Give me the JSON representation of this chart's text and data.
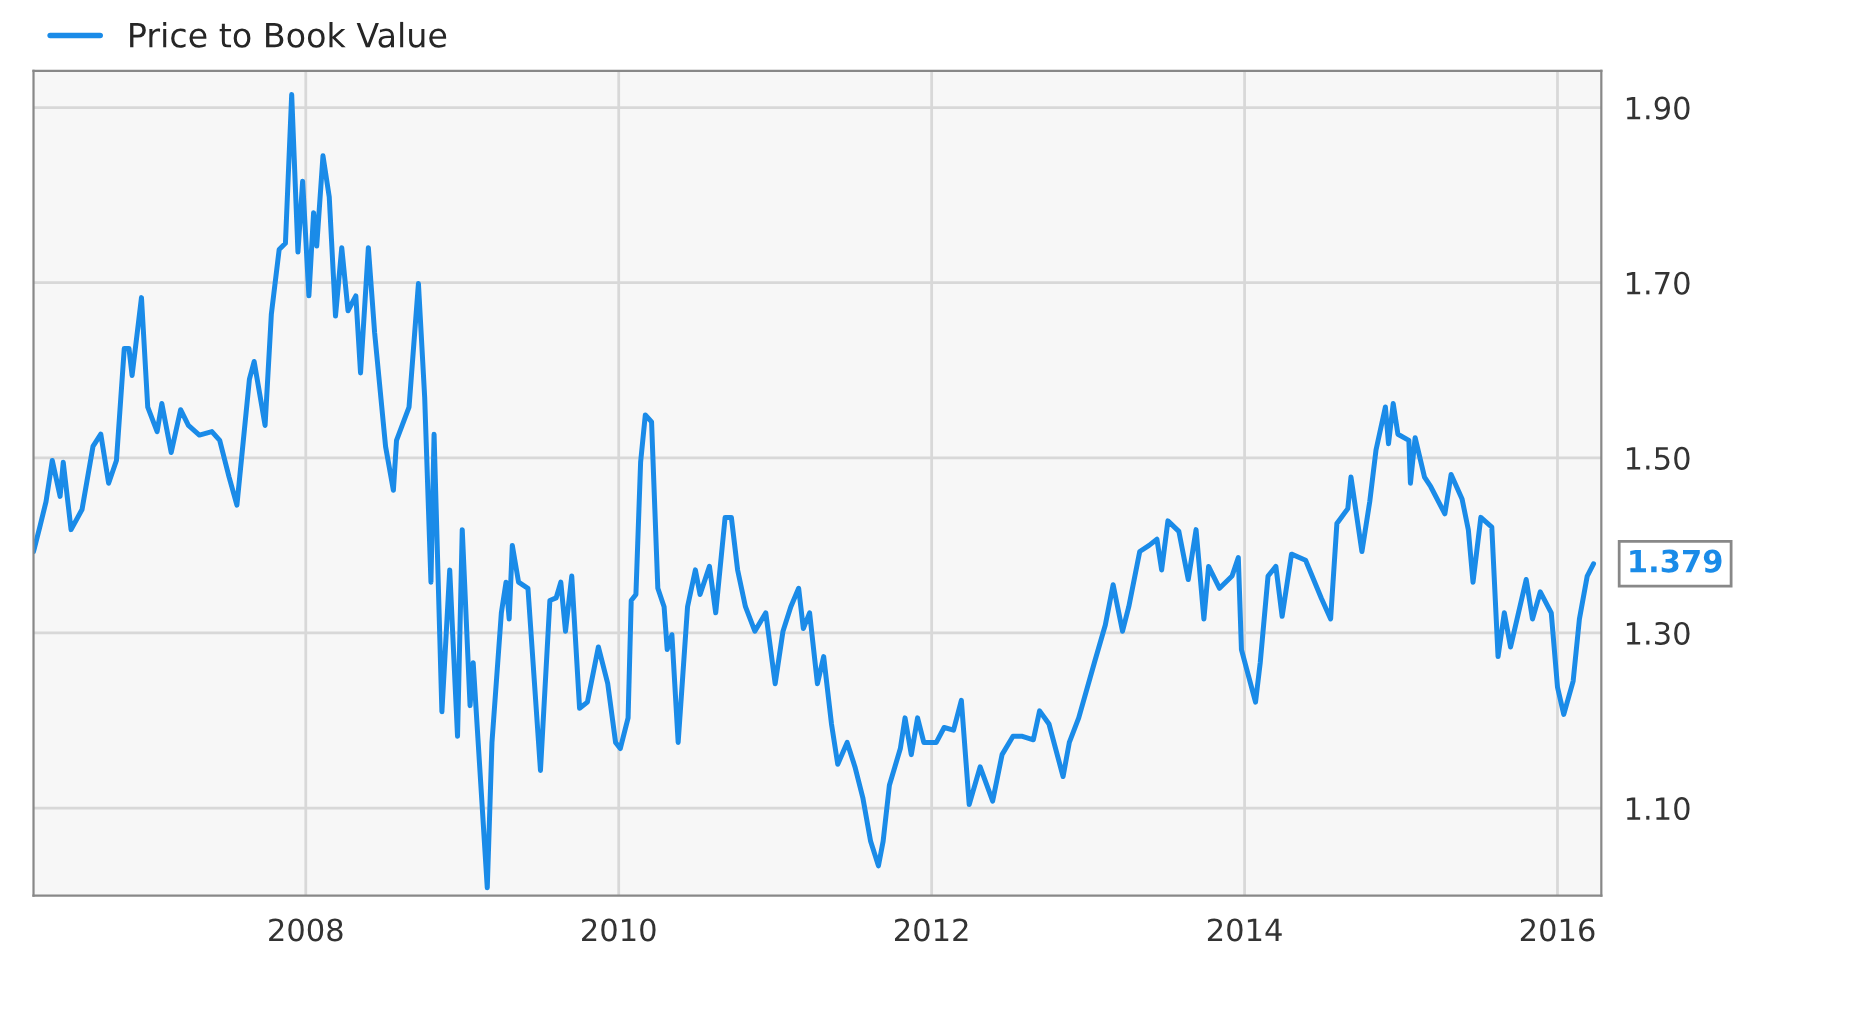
{
  "chart_data": {
    "type": "line",
    "x": [
      2006.26,
      2006.3,
      2006.34,
      2006.38,
      2006.43,
      2006.45,
      2006.5,
      2006.57,
      2006.64,
      2006.69,
      2006.74,
      2006.79,
      2006.84,
      2006.87,
      2006.89,
      2006.95,
      2006.99,
      2007.05,
      2007.08,
      2007.14,
      2007.2,
      2007.25,
      2007.32,
      2007.4,
      2007.45,
      2007.51,
      2007.56,
      2007.64,
      2007.67,
      2007.74,
      2007.78,
      2007.83,
      2007.87,
      2007.91,
      2007.95,
      2007.98,
      2008.02,
      2008.05,
      2008.07,
      2008.11,
      2008.15,
      2008.19,
      2008.23,
      2008.27,
      2008.32,
      2008.35,
      2008.4,
      2008.44,
      2008.51,
      2008.56,
      2008.58,
      2008.66,
      2008.72,
      2008.76,
      2008.8,
      2008.82,
      2008.87,
      2008.92,
      2008.97,
      2009.0,
      2009.05,
      2009.07,
      2009.16,
      2009.19,
      2009.25,
      2009.28,
      2009.3,
      2009.32,
      2009.36,
      2009.42,
      2009.5,
      2009.56,
      2009.6,
      2009.63,
      2009.66,
      2009.7,
      2009.75,
      2009.8,
      2009.87,
      2009.93,
      2009.98,
      2010.01,
      2010.06,
      2010.08,
      2010.11,
      2010.14,
      2010.17,
      2010.21,
      2010.25,
      2010.29,
      2010.31,
      2010.34,
      2010.38,
      2010.44,
      2010.49,
      2010.52,
      2010.58,
      2010.62,
      2010.68,
      2010.72,
      2010.76,
      2010.81,
      2010.87,
      2010.94,
      2011.0,
      2011.05,
      2011.1,
      2011.15,
      2011.18,
      2011.22,
      2011.27,
      2011.31,
      2011.36,
      2011.4,
      2011.46,
      2011.51,
      2011.56,
      2011.61,
      2011.66,
      2011.69,
      2011.73,
      2011.8,
      2011.83,
      2011.87,
      2011.91,
      2011.95,
      2012.03,
      2012.08,
      2012.14,
      2012.19,
      2012.24,
      2012.31,
      2012.39,
      2012.45,
      2012.52,
      2012.58,
      2012.65,
      2012.69,
      2012.75,
      2012.84,
      2012.88,
      2012.94,
      2013.04,
      2013.11,
      2013.16,
      2013.22,
      2013.26,
      2013.33,
      2013.39,
      2013.44,
      2013.47,
      2013.51,
      2013.58,
      2013.64,
      2013.69,
      2013.74,
      2013.77,
      2013.84,
      2013.92,
      2013.96,
      2013.98,
      2014.07,
      2014.1,
      2014.15,
      2014.2,
      2014.24,
      2014.3,
      2014.39,
      2014.49,
      2014.55,
      2014.59,
      2014.66,
      2014.68,
      2014.75,
      2014.8,
      2014.84,
      2014.9,
      2014.92,
      2014.95,
      2014.98,
      2015.05,
      2015.06,
      2015.09,
      2015.15,
      2015.19,
      2015.28,
      2015.32,
      2015.39,
      2015.43,
      2015.46,
      2015.51,
      2015.58,
      2015.62,
      2015.66,
      2015.7,
      2015.8,
      2015.84,
      2015.89,
      2015.96,
      2016.0,
      2016.04,
      2016.1,
      2016.14,
      2016.19,
      2016.23
    ],
    "series": [
      {
        "name": "Price to Book Value",
        "color": "#1a8be8",
        "values": [
          1.393,
          1.421,
          1.45,
          1.497,
          1.456,
          1.495,
          1.418,
          1.441,
          1.513,
          1.527,
          1.471,
          1.497,
          1.625,
          1.625,
          1.594,
          1.683,
          1.558,
          1.53,
          1.562,
          1.506,
          1.555,
          1.537,
          1.526,
          1.53,
          1.52,
          1.478,
          1.446,
          1.59,
          1.61,
          1.537,
          1.664,
          1.738,
          1.745,
          1.915,
          1.735,
          1.816,
          1.685,
          1.78,
          1.742,
          1.845,
          1.798,
          1.662,
          1.74,
          1.668,
          1.685,
          1.597,
          1.74,
          1.643,
          1.513,
          1.463,
          1.52,
          1.558,
          1.699,
          1.569,
          1.358,
          1.527,
          1.21,
          1.372,
          1.182,
          1.418,
          1.217,
          1.266,
          1.009,
          1.175,
          1.323,
          1.358,
          1.316,
          1.4,
          1.358,
          1.351,
          1.143,
          1.337,
          1.34,
          1.358,
          1.302,
          1.365,
          1.214,
          1.221,
          1.284,
          1.242,
          1.175,
          1.168,
          1.203,
          1.337,
          1.344,
          1.495,
          1.549,
          1.541,
          1.351,
          1.33,
          1.281,
          1.298,
          1.175,
          1.33,
          1.372,
          1.344,
          1.376,
          1.323,
          1.432,
          1.432,
          1.372,
          1.33,
          1.302,
          1.323,
          1.242,
          1.302,
          1.33,
          1.351,
          1.305,
          1.323,
          1.242,
          1.273,
          1.196,
          1.15,
          1.175,
          1.147,
          1.112,
          1.062,
          1.034,
          1.062,
          1.126,
          1.168,
          1.203,
          1.161,
          1.203,
          1.175,
          1.175,
          1.192,
          1.189,
          1.223,
          1.104,
          1.147,
          1.108,
          1.161,
          1.182,
          1.182,
          1.178,
          1.211,
          1.196,
          1.136,
          1.175,
          1.203,
          1.266,
          1.309,
          1.355,
          1.302,
          1.33,
          1.393,
          1.4,
          1.407,
          1.372,
          1.428,
          1.416,
          1.361,
          1.418,
          1.316,
          1.376,
          1.351,
          1.365,
          1.386,
          1.281,
          1.221,
          1.266,
          1.365,
          1.376,
          1.319,
          1.39,
          1.383,
          1.34,
          1.316,
          1.425,
          1.442,
          1.478,
          1.393,
          1.45,
          1.509,
          1.558,
          1.516,
          1.562,
          1.527,
          1.52,
          1.471,
          1.523,
          1.478,
          1.467,
          1.436,
          1.481,
          1.453,
          1.418,
          1.358,
          1.432,
          1.421,
          1.273,
          1.323,
          1.284,
          1.361,
          1.316,
          1.347,
          1.323,
          1.238,
          1.207,
          1.245,
          1.316,
          1.365,
          1.379
        ]
      }
    ],
    "xlim": [
      2006.26,
      2016.28
    ],
    "ylim": [
      1.0,
      1.942
    ],
    "xticks": [
      2008,
      2010,
      2012,
      2014,
      2016
    ],
    "yticks": [
      {
        "value": 1.1,
        "label": "1.10"
      },
      {
        "value": 1.3,
        "label": "1.30"
      },
      {
        "value": 1.5,
        "label": "1.50"
      },
      {
        "value": 1.7,
        "label": "1.70"
      },
      {
        "value": 1.9,
        "label": "1.90"
      }
    ],
    "annotations": [
      {
        "text": "1.379",
        "x": 2016.23,
        "y": 1.379
      }
    ],
    "grid": true,
    "legend": "top left"
  }
}
